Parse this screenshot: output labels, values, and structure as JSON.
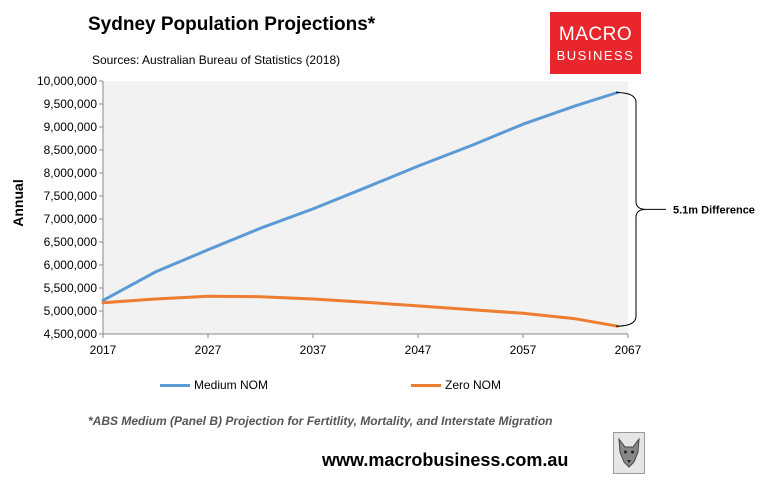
{
  "header": {
    "title": "Sydney Population Projections*",
    "source": "Sources: Australian Bureau of Statistics (2018)"
  },
  "logo": {
    "line1": "MACRO",
    "line2": "BUSINESS"
  },
  "colors": {
    "medium": "#5b9bd5",
    "zero": "#ed7d31",
    "plot_bg": "#f2f2f2",
    "logo_red": "#e8262b"
  },
  "chart_data": {
    "type": "line",
    "title": "Sydney Population Projections*",
    "xlabel": "",
    "ylabel": "Annual",
    "xlim": [
      2017,
      2067
    ],
    "ylim": [
      4500000,
      10000000
    ],
    "x_ticks": [
      "2017",
      "2027",
      "2037",
      "2047",
      "2057",
      "2067"
    ],
    "y_ticks": [
      "4,500,000",
      "5,000,000",
      "5,500,000",
      "6,000,000",
      "6,500,000",
      "7,000,000",
      "7,500,000",
      "8,000,000",
      "8,500,000",
      "9,000,000",
      "9,500,000",
      "10,000,000"
    ],
    "grid": false,
    "legend": "bottom",
    "x": [
      2017,
      2022,
      2027,
      2032,
      2037,
      2042,
      2047,
      2052,
      2057,
      2062,
      2066
    ],
    "series": [
      {
        "name": "Medium NOM",
        "values": [
          5230000,
          5850000,
          6330000,
          6800000,
          7220000,
          7680000,
          8150000,
          8590000,
          9060000,
          9460000,
          9750000
        ]
      },
      {
        "name": "Zero NOM",
        "values": [
          5180000,
          5260000,
          5320000,
          5310000,
          5260000,
          5190000,
          5110000,
          5030000,
          4950000,
          4830000,
          4670000
        ]
      }
    ],
    "annotation": "5.1m Difference"
  },
  "note": "*ABS Medium (Panel B) Projection for Fertitlity, Mortality, and Interstate Migration",
  "url": "www.macrobusiness.com.au"
}
